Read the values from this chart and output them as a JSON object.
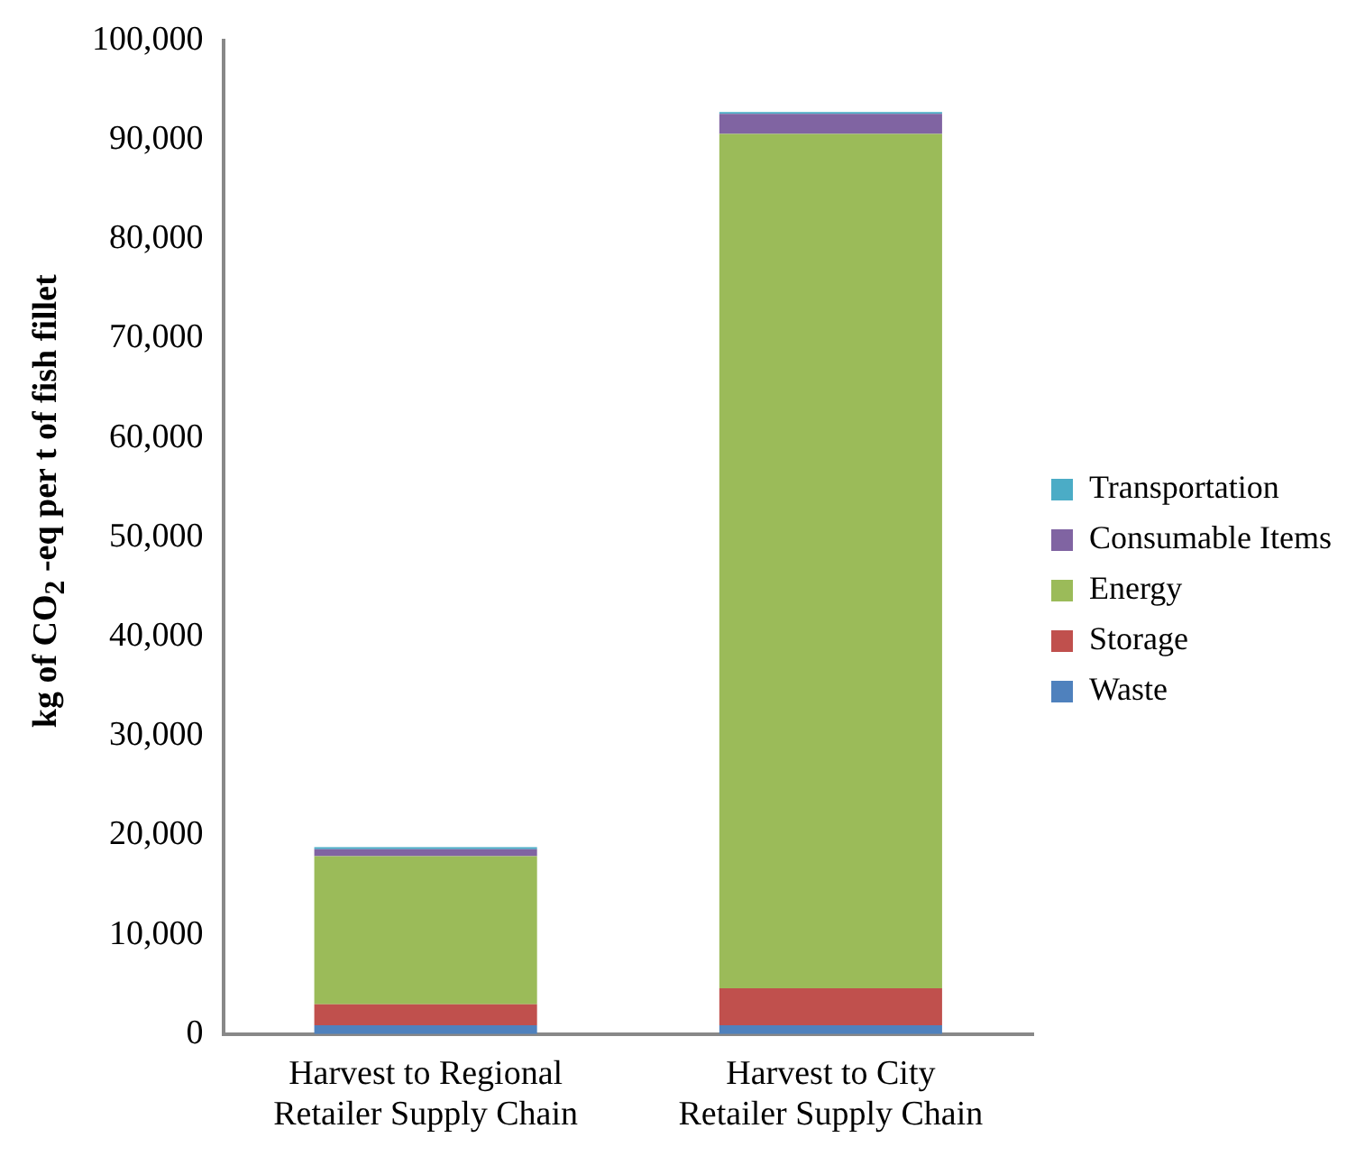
{
  "chart_data": {
    "type": "bar",
    "stacked": true,
    "ylabel": "kg of CO$_{2}$ -eq per t of fish fillet",
    "categories": [
      "Harvest to Regional Retailer Supply Chain",
      "Harvest to City Retailer Supply Chain"
    ],
    "series": [
      {
        "name": "Waste",
        "color": "#4f81bd",
        "values": [
          900,
          900
        ]
      },
      {
        "name": "Storage",
        "color": "#c0504d",
        "values": [
          2100,
          3700
        ]
      },
      {
        "name": "Energy",
        "color": "#9bbb59",
        "values": [
          14900,
          86000
        ]
      },
      {
        "name": "Consumable Items",
        "color": "#8064a2",
        "values": [
          700,
          2000
        ]
      },
      {
        "name": "Transportation",
        "color": "#4bacc6",
        "values": [
          200,
          200
        ]
      }
    ],
    "ylim": [
      0,
      100000
    ],
    "yticks": [
      0,
      {
        "value": 10000,
        "label": "10,000"
      },
      {
        "value": 20000,
        "label": "20,000"
      },
      {
        "value": 30000,
        "label": "30,000"
      },
      {
        "value": 40000,
        "label": "40,000"
      },
      {
        "value": 50000,
        "label": "50,000"
      },
      {
        "value": 60000,
        "label": "60,000"
      },
      {
        "value": 70000,
        "label": "70,000"
      },
      {
        "value": 80000,
        "label": "80,000"
      },
      {
        "value": 90000,
        "label": "90,000"
      },
      {
        "value": 100000,
        "label": "100,000"
      }
    ],
    "grid": false,
    "legend": "right"
  }
}
